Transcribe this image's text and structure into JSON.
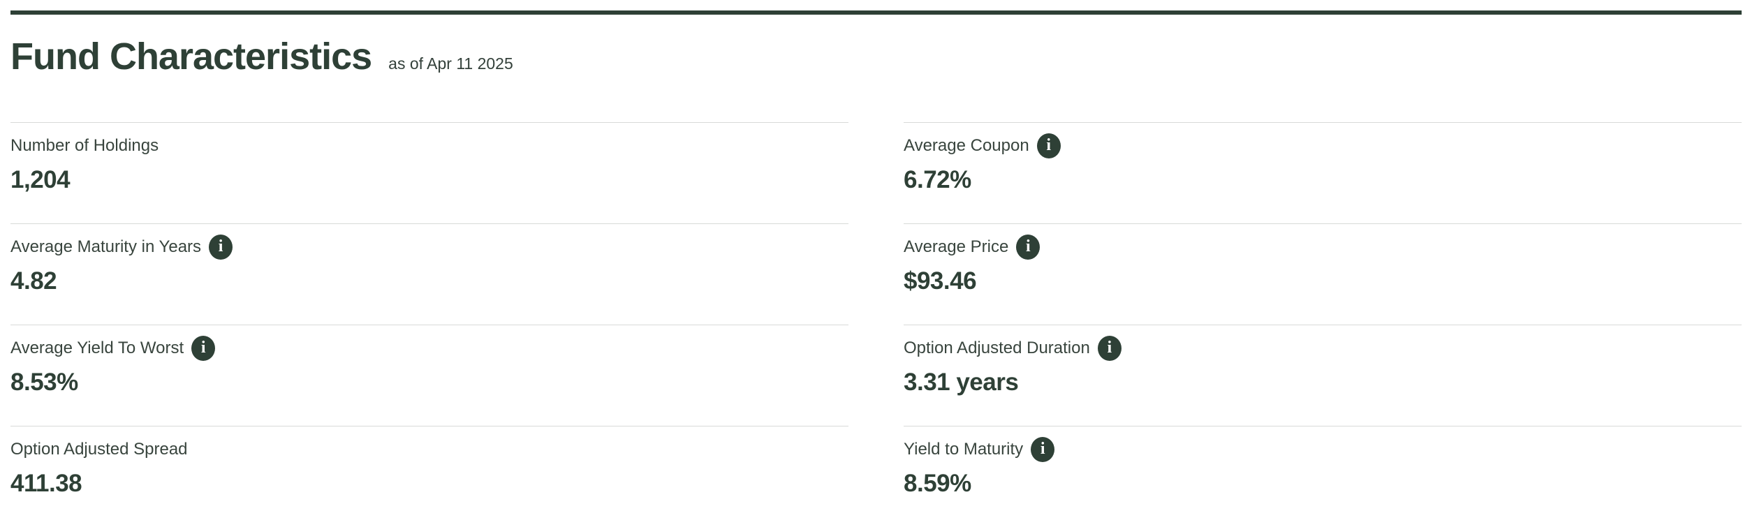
{
  "header": {
    "title": "Fund Characteristics",
    "as_of": "as of Apr 11 2025"
  },
  "icons": {
    "info_glyph": "i"
  },
  "colors": {
    "accent_dark_green": "#2e4036",
    "label_text": "#38443d",
    "divider_gray": "#d8dad8",
    "info_icon_bg": "#2e4036",
    "info_icon_glyph": "#ffffff",
    "background": "#ffffff"
  },
  "stats": [
    {
      "label": "Number of Holdings",
      "value": "1,204",
      "has_info": false
    },
    {
      "label": "Average Coupon",
      "value": "6.72%",
      "has_info": true
    },
    {
      "label": "Average Maturity in Years",
      "value": "4.82",
      "has_info": true
    },
    {
      "label": "Average Price",
      "value": "$93.46",
      "has_info": true
    },
    {
      "label": "Average Yield To Worst",
      "value": "8.53%",
      "has_info": true
    },
    {
      "label": "Option Adjusted Duration",
      "value": "3.31 years",
      "has_info": true
    },
    {
      "label": "Option Adjusted Spread",
      "value": "411.38",
      "has_info": false
    },
    {
      "label": "Yield to Maturity",
      "value": "8.59%",
      "has_info": true
    }
  ]
}
